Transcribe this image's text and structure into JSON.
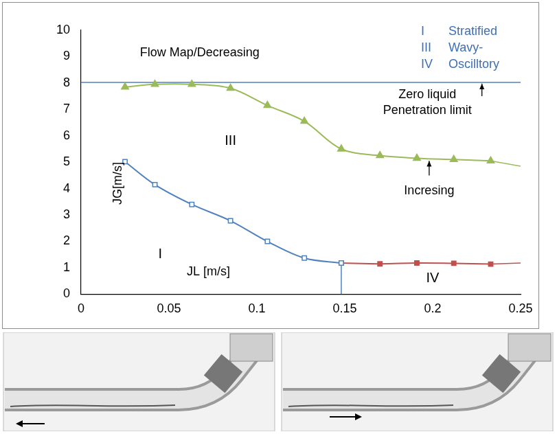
{
  "chart_data": {
    "type": "scatter",
    "title": "Flow Map/Decreasing",
    "xlabel": "JL [m/s]",
    "ylabel": "JG[m/s]",
    "xlim": [
      0,
      0.25
    ],
    "xticks": [
      0,
      0.05,
      0.1,
      0.15,
      0.2,
      0.25
    ],
    "ylim": [
      0,
      10
    ],
    "yticks": [
      0,
      1,
      2,
      3,
      4,
      5,
      6,
      7,
      8,
      9,
      10
    ],
    "grid": false,
    "key": [
      {
        "symbol": "I",
        "label": "Stratified"
      },
      {
        "symbol": "III",
        "label": "Wavy-"
      },
      {
        "symbol": "IV",
        "label": "Oscilltory"
      }
    ],
    "series": [
      {
        "color": "#9bbb59",
        "marker": "triangle",
        "line_style": "solid",
        "x": [
          0.025,
          0.042,
          0.063,
          0.085,
          0.106,
          0.127,
          0.148,
          0.17,
          0.191,
          0.212,
          0.233
        ],
        "values": [
          7.85,
          7.95,
          7.95,
          7.8,
          7.15,
          6.55,
          5.5,
          5.25,
          5.15,
          5.1,
          5.05
        ]
      },
      {
        "color": "#9bbb59",
        "marker": "none",
        "line_style": "solid",
        "x": [
          0.233,
          0.25
        ],
        "values": [
          5.05,
          4.85
        ]
      },
      {
        "color": "#4f81bd",
        "marker": "square_open",
        "line_style": "solid",
        "x": [
          0.025,
          0.042,
          0.063,
          0.085,
          0.106,
          0.127,
          0.148
        ],
        "values": [
          5.02,
          4.15,
          3.4,
          2.78,
          2.0,
          1.37,
          1.18
        ]
      },
      {
        "color": "#c0504d",
        "marker": "square",
        "line_style": "solid",
        "x": [
          0.148,
          0.17,
          0.191,
          0.212,
          0.233
        ],
        "values": [
          1.18,
          1.15,
          1.18,
          1.17,
          1.14
        ]
      },
      {
        "color": "#c0504d",
        "marker": "none",
        "line_style": "solid",
        "x": [
          0.233,
          0.25
        ],
        "values": [
          1.14,
          1.18
        ]
      },
      {
        "color": "#4f81bd",
        "marker": "none",
        "line_style": "solid",
        "x": [
          0,
          0.25
        ],
        "values": [
          8.02,
          8.02
        ]
      },
      {
        "color": "#4f81bd",
        "marker": "none",
        "line_style": "solid",
        "x": [
          0.148,
          0.148
        ],
        "values": [
          0,
          1.18
        ]
      }
    ],
    "annotations": [
      {
        "text": "III",
        "x": 0.085,
        "y": 5.8
      },
      {
        "text": "I",
        "x": 0.045,
        "y": 1.5
      },
      {
        "text": "IV",
        "x": 0.2,
        "y": 0.6
      },
      {
        "text": "Zero liquid",
        "x": 0.197,
        "y": 7.55
      },
      {
        "text": "Penetration limit",
        "x": 0.197,
        "y": 6.95
      },
      {
        "text": "Incresing",
        "x": 0.198,
        "y": 3.9
      }
    ],
    "arrows": [
      {
        "from": [
          0.228,
          7.5
        ],
        "to": [
          0.228,
          7.98
        ]
      },
      {
        "from": [
          0.198,
          4.5
        ],
        "to": [
          0.198,
          5.05
        ]
      }
    ]
  }
}
